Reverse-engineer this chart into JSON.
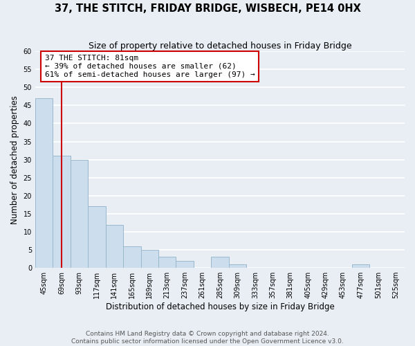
{
  "title": "37, THE STITCH, FRIDAY BRIDGE, WISBECH, PE14 0HX",
  "subtitle": "Size of property relative to detached houses in Friday Bridge",
  "xlabel": "Distribution of detached houses by size in Friday Bridge",
  "ylabel": "Number of detached properties",
  "bar_color": "#ccdded",
  "bar_edge_color": "#9ab8cc",
  "bin_labels": [
    "45sqm",
    "69sqm",
    "93sqm",
    "117sqm",
    "141sqm",
    "165sqm",
    "189sqm",
    "213sqm",
    "237sqm",
    "261sqm",
    "285sqm",
    "309sqm",
    "333sqm",
    "357sqm",
    "381sqm",
    "405sqm",
    "429sqm",
    "453sqm",
    "477sqm",
    "501sqm",
    "525sqm"
  ],
  "bar_values": [
    47,
    31,
    30,
    17,
    12,
    6,
    5,
    3,
    2,
    0,
    3,
    1,
    0,
    0,
    0,
    0,
    0,
    0,
    1,
    0,
    0
  ],
  "ylim": [
    0,
    60
  ],
  "yticks": [
    0,
    5,
    10,
    15,
    20,
    25,
    30,
    35,
    40,
    45,
    50,
    55,
    60
  ],
  "property_size": 81,
  "annotation_line1": "37 THE STITCH: 81sqm",
  "annotation_line2": "← 39% of detached houses are smaller (62)",
  "annotation_line3": "61% of semi-detached houses are larger (97) →",
  "annotation_box_color": "white",
  "annotation_box_edge_color": "#cc0000",
  "vline_color": "#cc0000",
  "footer_line1": "Contains HM Land Registry data © Crown copyright and database right 2024.",
  "footer_line2": "Contains public sector information licensed under the Open Government Licence v3.0.",
  "background_color": "#e8eef4",
  "grid_color": "white",
  "title_fontsize": 10.5,
  "subtitle_fontsize": 9,
  "xlabel_fontsize": 8.5,
  "ylabel_fontsize": 8.5,
  "tick_fontsize": 7,
  "annotation_fontsize": 8,
  "footer_fontsize": 6.5
}
